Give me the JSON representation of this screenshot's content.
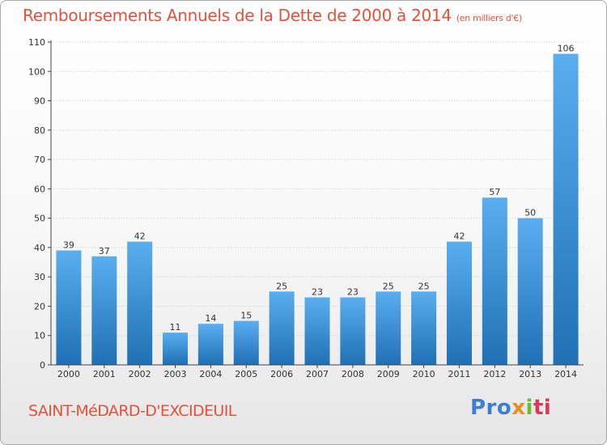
{
  "header": {
    "title": "Remboursements Annuels de la Dette de 2000 à 2014",
    "unit": "(en milliers d'€)"
  },
  "footer": {
    "town": "SAINT-MéDARD-D'EXCIDEUIL",
    "logo": "Proxiti"
  },
  "colors": {
    "title": "#e2523a",
    "bar_top": "#5aaef0",
    "bar_bottom": "#1f70b4",
    "axis": "#444444"
  },
  "chart_data": {
    "type": "bar",
    "categories": [
      "2000",
      "2001",
      "2002",
      "2003",
      "2004",
      "2005",
      "2006",
      "2007",
      "2008",
      "2009",
      "2010",
      "2011",
      "2012",
      "2013",
      "2014"
    ],
    "values": [
      39,
      37,
      42,
      11,
      14,
      15,
      25,
      23,
      23,
      25,
      25,
      42,
      57,
      50,
      106
    ],
    "ylim": [
      0,
      110
    ],
    "yticks": [
      0,
      10,
      20,
      30,
      40,
      50,
      60,
      70,
      80,
      90,
      100,
      110
    ],
    "grid": true,
    "data_labels": true
  }
}
